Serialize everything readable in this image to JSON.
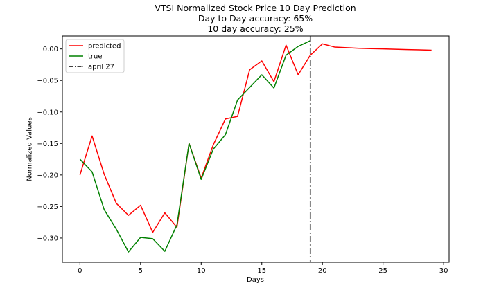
{
  "chart_data": {
    "type": "line",
    "title_lines": [
      "VTSI Normalized Stock Price 10 Day Prediction",
      "Day to Day accuracy: 65%",
      "10 day accuracy: 25%"
    ],
    "xlabel": "Days",
    "ylabel": "Normalized Values",
    "xlim": [
      -1.45,
      30.45
    ],
    "ylim": [
      -0.3385,
      0.0205
    ],
    "xticks": [
      0,
      5,
      10,
      15,
      20,
      25,
      30
    ],
    "xtick_labels": [
      "0",
      "5",
      "10",
      "15",
      "20",
      "25",
      "30"
    ],
    "yticks": [
      0.0,
      -0.05,
      -0.1,
      -0.15,
      -0.2,
      -0.25,
      -0.3
    ],
    "ytick_labels": [
      "0.00",
      "−0.05",
      "−0.10",
      "−0.15",
      "−0.20",
      "−0.25",
      "−0.30"
    ],
    "grid": false,
    "legend_position": "upper-left",
    "series": [
      {
        "name": "predicted",
        "color": "#ff0000",
        "x": [
          0,
          1,
          2,
          3,
          4,
          5,
          6,
          7,
          8,
          9,
          10,
          11,
          12,
          13,
          14,
          15,
          16,
          17,
          18,
          19,
          20,
          21,
          22,
          23,
          24,
          25,
          26,
          27,
          28,
          29
        ],
        "y": [
          -0.2,
          -0.138,
          -0.199,
          -0.245,
          -0.264,
          -0.248,
          -0.291,
          -0.26,
          -0.283,
          -0.15,
          -0.205,
          -0.152,
          -0.111,
          -0.107,
          -0.033,
          -0.019,
          -0.052,
          0.006,
          -0.041,
          -0.01,
          0.008,
          0.003,
          0.002,
          0.001,
          0.0005,
          0.0,
          -0.0005,
          -0.001,
          -0.0015,
          -0.002
        ]
      },
      {
        "name": "true",
        "color": "#008000",
        "x": [
          0,
          1,
          2,
          3,
          4,
          5,
          6,
          7,
          8,
          9,
          10,
          11,
          12,
          13,
          14,
          15,
          16,
          17,
          18,
          19
        ],
        "y": [
          -0.175,
          -0.195,
          -0.255,
          -0.286,
          -0.322,
          -0.299,
          -0.301,
          -0.321,
          -0.279,
          -0.15,
          -0.207,
          -0.159,
          -0.136,
          -0.081,
          -0.061,
          -0.041,
          -0.062,
          -0.01,
          0.004,
          0.013
        ]
      }
    ],
    "vline": {
      "name": "april 27",
      "x": 19,
      "color": "#000000",
      "style": "dashdot"
    }
  }
}
